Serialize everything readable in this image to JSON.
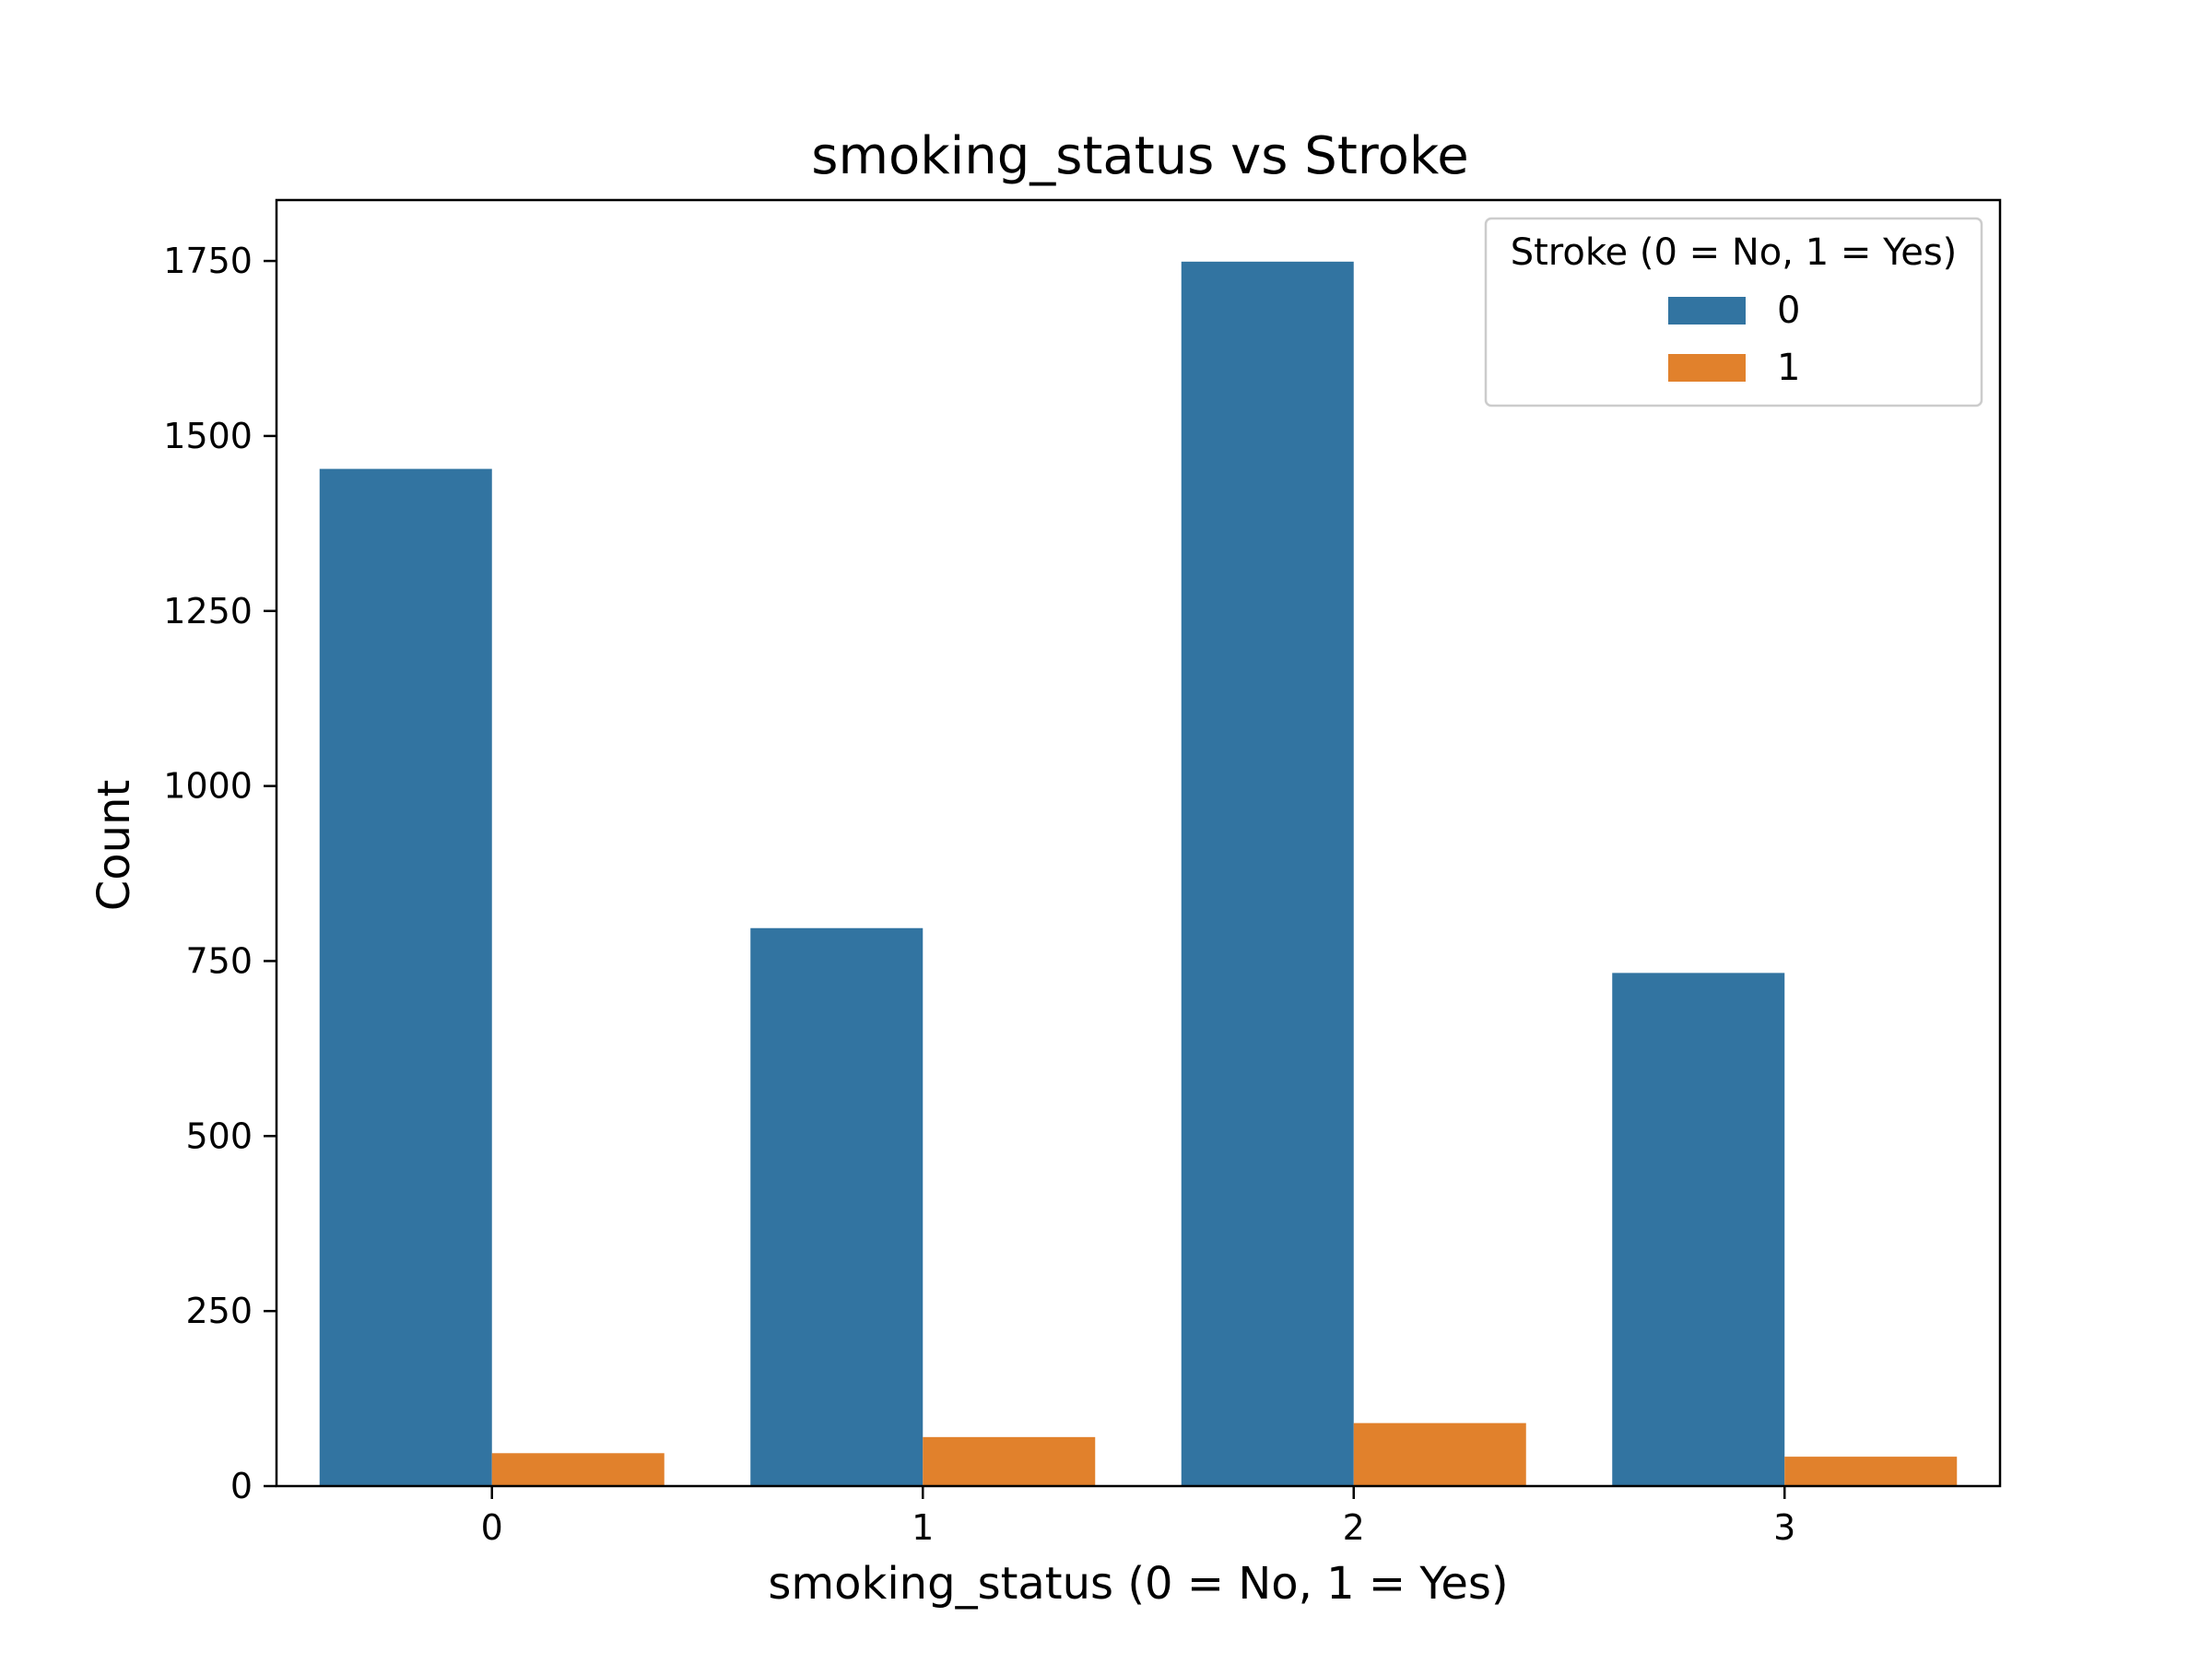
{
  "chart_data": {
    "type": "bar",
    "title": "smoking_status vs Stroke",
    "xlabel": "smoking_status (0 = No, 1 = Yes)",
    "ylabel": "Count",
    "categories": [
      "0",
      "1",
      "2",
      "3"
    ],
    "series": [
      {
        "name": "0",
        "color": "#3274a1",
        "values": [
          1453,
          797,
          1749,
          733
        ]
      },
      {
        "name": "1",
        "color": "#e1812c",
        "values": [
          47,
          70,
          90,
          42
        ]
      }
    ],
    "ylim": [
      0,
      1837
    ],
    "yticks": [
      0,
      250,
      500,
      750,
      1000,
      1250,
      1500,
      1750
    ],
    "grid": false,
    "legend": {
      "title": "Stroke (0 = No, 1 = Yes)",
      "position": "top-right"
    }
  }
}
